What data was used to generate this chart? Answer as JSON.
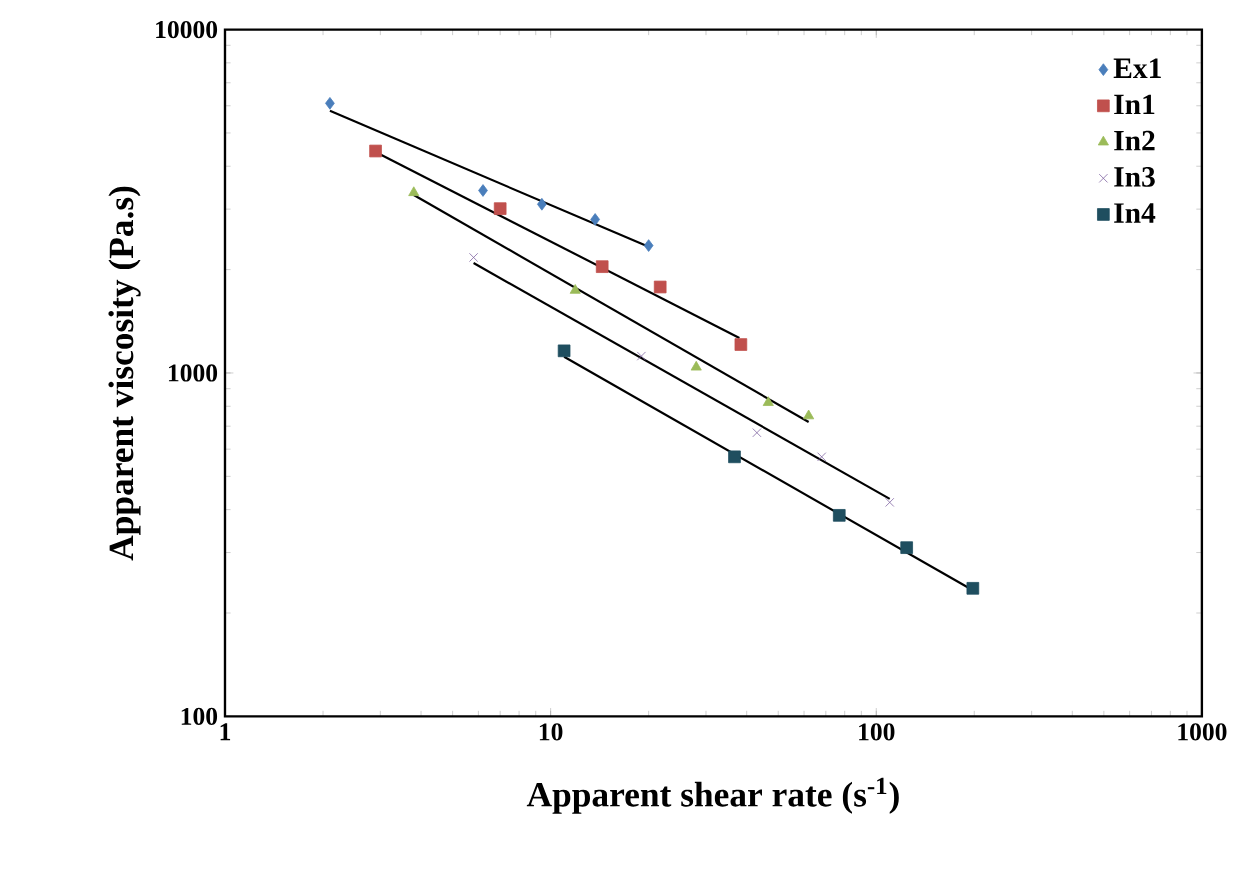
{
  "chart_data": {
    "type": "scatter",
    "xlabel": "Apparent shear rate (s$^{-1}$)",
    "ylabel": "Apparent viscosity (Pa.s)",
    "log": "xy",
    "xlim": [
      1,
      1000
    ],
    "ylim": [
      100,
      10000
    ],
    "xticks": [
      1,
      10,
      100,
      1000
    ],
    "yticks": [
      100,
      1000,
      10000
    ],
    "grid": false,
    "legend": "top right",
    "series": [
      {
        "name": "Ex1",
        "color": "#4a7ebb",
        "marker": "diamond",
        "x": [
          2.1,
          6.2,
          9.4,
          13.7,
          20
        ],
        "values": [
          6100,
          3400,
          3100,
          2800,
          2350
        ]
      },
      {
        "name": "In1",
        "color": "#c0504d",
        "marker": "square",
        "x": [
          2.9,
          7,
          14.4,
          21.7,
          38.4
        ],
        "values": [
          4430,
          3010,
          2040,
          1780,
          1210
        ]
      },
      {
        "name": "In2",
        "color": "#9bbb59",
        "marker": "triangle",
        "x": [
          3.8,
          11.9,
          28,
          46.6,
          62
        ],
        "values": [
          3350,
          1740,
          1040,
          820,
          750
        ]
      },
      {
        "name": "In3",
        "color": "#8064a2",
        "marker": "cross",
        "x": [
          5.8,
          19,
          43,
          68,
          110
        ],
        "values": [
          2170,
          1120,
          670,
          570,
          420
        ]
      },
      {
        "name": "In4",
        "color": "#1f4e5f",
        "marker": "square",
        "x": [
          11,
          36.7,
          77,
          124,
          198
        ],
        "values": [
          1160,
          570,
          385,
          310,
          236
        ]
      },
      {
        "type": "line",
        "color": "#000000",
        "marker": "none",
        "x": [
          2.1,
          20
        ],
        "values": [
          5800,
          2330
        ]
      },
      {
        "type": "line",
        "color": "#000000",
        "marker": "none",
        "x": [
          2.9,
          38
        ],
        "values": [
          4400,
          1265
        ]
      },
      {
        "type": "line",
        "color": "#000000",
        "marker": "none",
        "x": [
          3.8,
          62
        ],
        "values": [
          3300,
          720
        ]
      },
      {
        "type": "line",
        "color": "#000000",
        "marker": "none",
        "x": [
          5.8,
          110
        ],
        "values": [
          2090,
          430
        ]
      },
      {
        "type": "line",
        "color": "#000000",
        "marker": "none",
        "x": [
          11,
          198
        ],
        "values": [
          1115,
          233
        ]
      }
    ]
  }
}
